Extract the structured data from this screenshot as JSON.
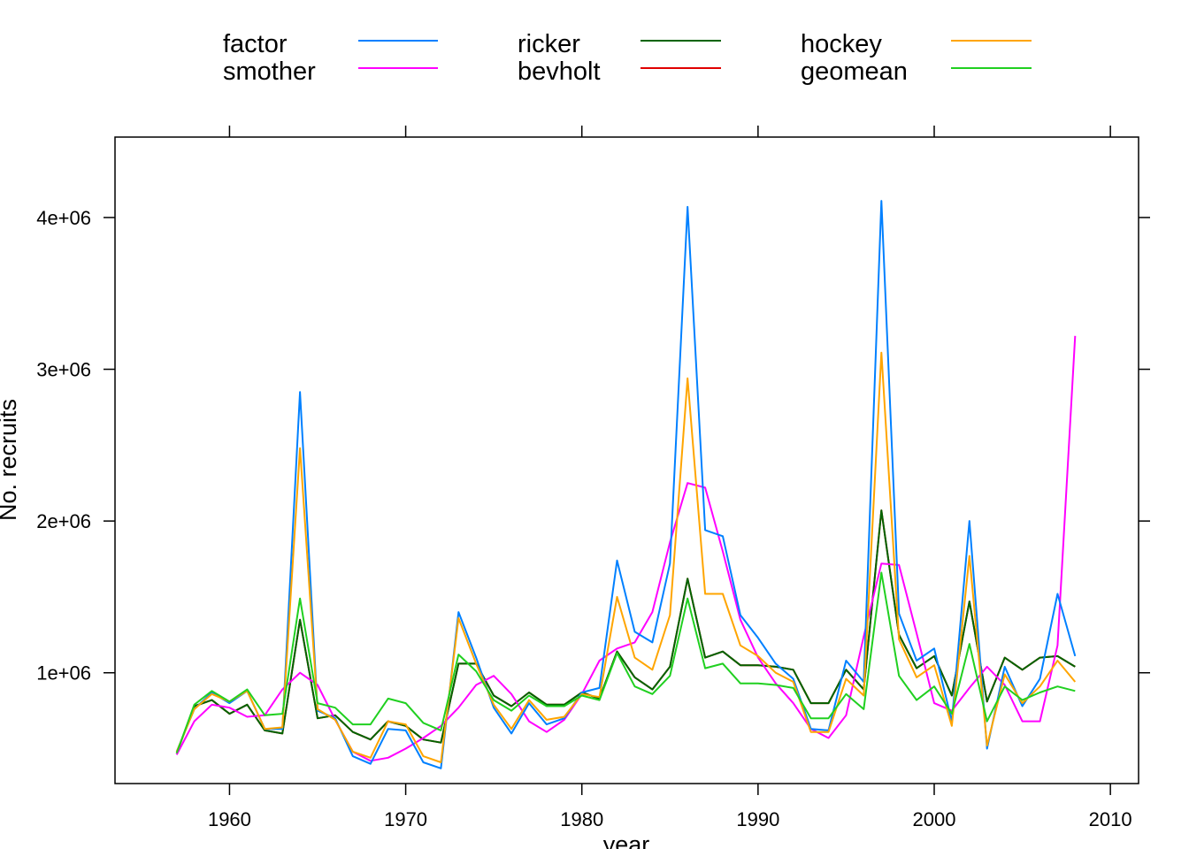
{
  "chart_data": {
    "type": "line",
    "title": "",
    "xlabel": "year",
    "ylabel": "No. recruits",
    "xlim": [
      1953.5,
      2011.6
    ],
    "ylim": [
      270000,
      4530000
    ],
    "x_ticks": [
      1960,
      1970,
      1980,
      1990,
      2000,
      2010
    ],
    "y_ticks": [
      1000000,
      2000000,
      3000000,
      4000000
    ],
    "y_tick_labels": [
      "1e+06",
      "2e+06",
      "3e+06",
      "4e+06"
    ],
    "grid": false,
    "legend_position": "top",
    "x": [
      1957,
      1958,
      1959,
      1960,
      1961,
      1962,
      1963,
      1964,
      1965,
      1966,
      1967,
      1968,
      1969,
      1970,
      1971,
      1972,
      1973,
      1974,
      1975,
      1976,
      1977,
      1978,
      1979,
      1980,
      1981,
      1982,
      1983,
      1984,
      1985,
      1986,
      1987,
      1988,
      1989,
      1990,
      1991,
      1992,
      1993,
      1994,
      1995,
      1996,
      1997,
      1998,
      1999,
      2000,
      2001,
      2002,
      2003,
      2004,
      2005,
      2006,
      2007,
      2008
    ],
    "series": [
      {
        "name": "factor",
        "color": "#0080ff",
        "values": [
          480000,
          760000,
          870000,
          800000,
          880000,
          630000,
          630000,
          2850000,
          750000,
          700000,
          450000,
          400000,
          630000,
          620000,
          410000,
          370000,
          1400000,
          1100000,
          770000,
          600000,
          800000,
          660000,
          700000,
          870000,
          900000,
          1740000,
          1270000,
          1200000,
          1720000,
          4070000,
          1940000,
          1900000,
          1380000,
          1230000,
          1060000,
          960000,
          630000,
          620000,
          1080000,
          940000,
          4110000,
          1390000,
          1080000,
          1160000,
          680000,
          2000000,
          500000,
          1040000,
          780000,
          960000,
          1520000,
          1110000
        ]
      },
      {
        "name": "smother",
        "color": "#ff00ff",
        "values": [
          460000,
          680000,
          790000,
          770000,
          710000,
          720000,
          890000,
          1000000,
          920000,
          690000,
          480000,
          420000,
          440000,
          500000,
          570000,
          650000,
          770000,
          920000,
          980000,
          860000,
          680000,
          610000,
          690000,
          860000,
          1080000,
          1160000,
          1200000,
          1400000,
          1860000,
          2250000,
          2220000,
          1800000,
          1350000,
          1100000,
          930000,
          800000,
          630000,
          570000,
          720000,
          1240000,
          1720000,
          1710000,
          1260000,
          800000,
          750000,
          900000,
          1040000,
          920000,
          680000,
          680000,
          1180000,
          3220000
        ]
      },
      {
        "name": "ricker",
        "color": "#006400",
        "values": [
          470000,
          780000,
          820000,
          730000,
          790000,
          620000,
          600000,
          1350000,
          700000,
          720000,
          610000,
          560000,
          680000,
          650000,
          560000,
          540000,
          1060000,
          1060000,
          850000,
          780000,
          870000,
          790000,
          790000,
          870000,
          830000,
          1140000,
          970000,
          890000,
          1040000,
          1620000,
          1100000,
          1140000,
          1050000,
          1050000,
          1040000,
          1020000,
          800000,
          800000,
          1020000,
          890000,
          2070000,
          1250000,
          1030000,
          1110000,
          850000,
          1470000,
          810000,
          1100000,
          1020000,
          1100000,
          1110000,
          1040000
        ]
      },
      {
        "name": "bevholt",
        "color": "#e00000",
        "values": [
          470000,
          780000,
          820000,
          730000,
          790000,
          620000,
          600000,
          1350000,
          700000,
          720000,
          610000,
          560000,
          680000,
          650000,
          560000,
          540000,
          1060000,
          1060000,
          850000,
          780000,
          870000,
          790000,
          790000,
          870000,
          830000,
          1140000,
          970000,
          890000,
          1040000,
          1620000,
          1100000,
          1140000,
          1050000,
          1050000,
          1040000,
          1020000,
          800000,
          800000,
          1020000,
          890000,
          2070000,
          1250000,
          1030000,
          1110000,
          850000,
          1470000,
          810000,
          1100000,
          1020000,
          1100000,
          1110000,
          1040000
        ]
      },
      {
        "name": "hockey",
        "color": "#ffa500",
        "values": [
          480000,
          760000,
          860000,
          810000,
          880000,
          630000,
          640000,
          2480000,
          760000,
          690000,
          480000,
          440000,
          680000,
          660000,
          450000,
          410000,
          1360000,
          1060000,
          790000,
          630000,
          820000,
          690000,
          710000,
          860000,
          840000,
          1500000,
          1100000,
          1020000,
          1380000,
          2940000,
          1520000,
          1520000,
          1180000,
          1110000,
          1000000,
          940000,
          610000,
          610000,
          960000,
          850000,
          3110000,
          1220000,
          970000,
          1050000,
          650000,
          1770000,
          520000,
          990000,
          800000,
          910000,
          1080000,
          940000
        ]
      },
      {
        "name": "geomean",
        "color": "#20d020",
        "values": [
          470000,
          790000,
          880000,
          810000,
          890000,
          720000,
          730000,
          1490000,
          800000,
          770000,
          660000,
          660000,
          830000,
          800000,
          670000,
          620000,
          1120000,
          1010000,
          820000,
          750000,
          850000,
          780000,
          780000,
          850000,
          820000,
          1130000,
          910000,
          860000,
          980000,
          1490000,
          1030000,
          1060000,
          930000,
          930000,
          920000,
          900000,
          700000,
          700000,
          860000,
          760000,
          1660000,
          980000,
          820000,
          910000,
          730000,
          1190000,
          680000,
          910000,
          820000,
          870000,
          910000,
          880000
        ]
      }
    ]
  }
}
